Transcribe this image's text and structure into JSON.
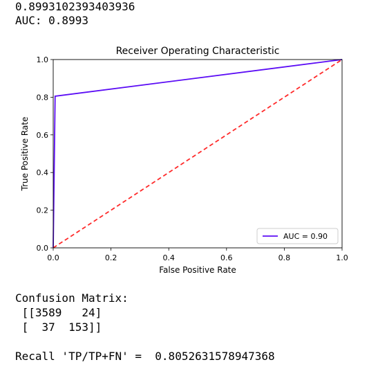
{
  "output": {
    "auc_raw": "0.8993102393403936",
    "auc_line": "AUC: 0.8993",
    "cm_title": "Confusion Matrix:",
    "cm_row1": " [[3589   24]",
    "cm_row2": " [  37  153]]",
    "recall_line": "Recall 'TP/TP+FN' =  0.8052631578947368"
  },
  "chart_data": {
    "type": "line",
    "title": "Receiver Operating Characteristic",
    "xlabel": "False Positive Rate",
    "ylabel": "True Positive Rate",
    "xlim": [
      0.0,
      1.0
    ],
    "ylim": [
      0.0,
      1.0
    ],
    "xticks": [
      "0.0",
      "0.2",
      "0.4",
      "0.6",
      "0.8",
      "1.0"
    ],
    "yticks": [
      "0.0",
      "0.2",
      "0.4",
      "0.6",
      "0.8",
      "1.0"
    ],
    "grid": false,
    "legend_position": "lower right",
    "series": [
      {
        "name": "AUC = 0.90",
        "color": "#5b0cf5",
        "style": "solid",
        "x": [
          0.0,
          0.0066,
          1.0
        ],
        "y": [
          0.0,
          0.8053,
          1.0
        ]
      },
      {
        "color": "#ff2a2a",
        "style": "dashed",
        "x": [
          0.0,
          1.0
        ],
        "y": [
          0.0,
          1.0
        ]
      }
    ]
  }
}
